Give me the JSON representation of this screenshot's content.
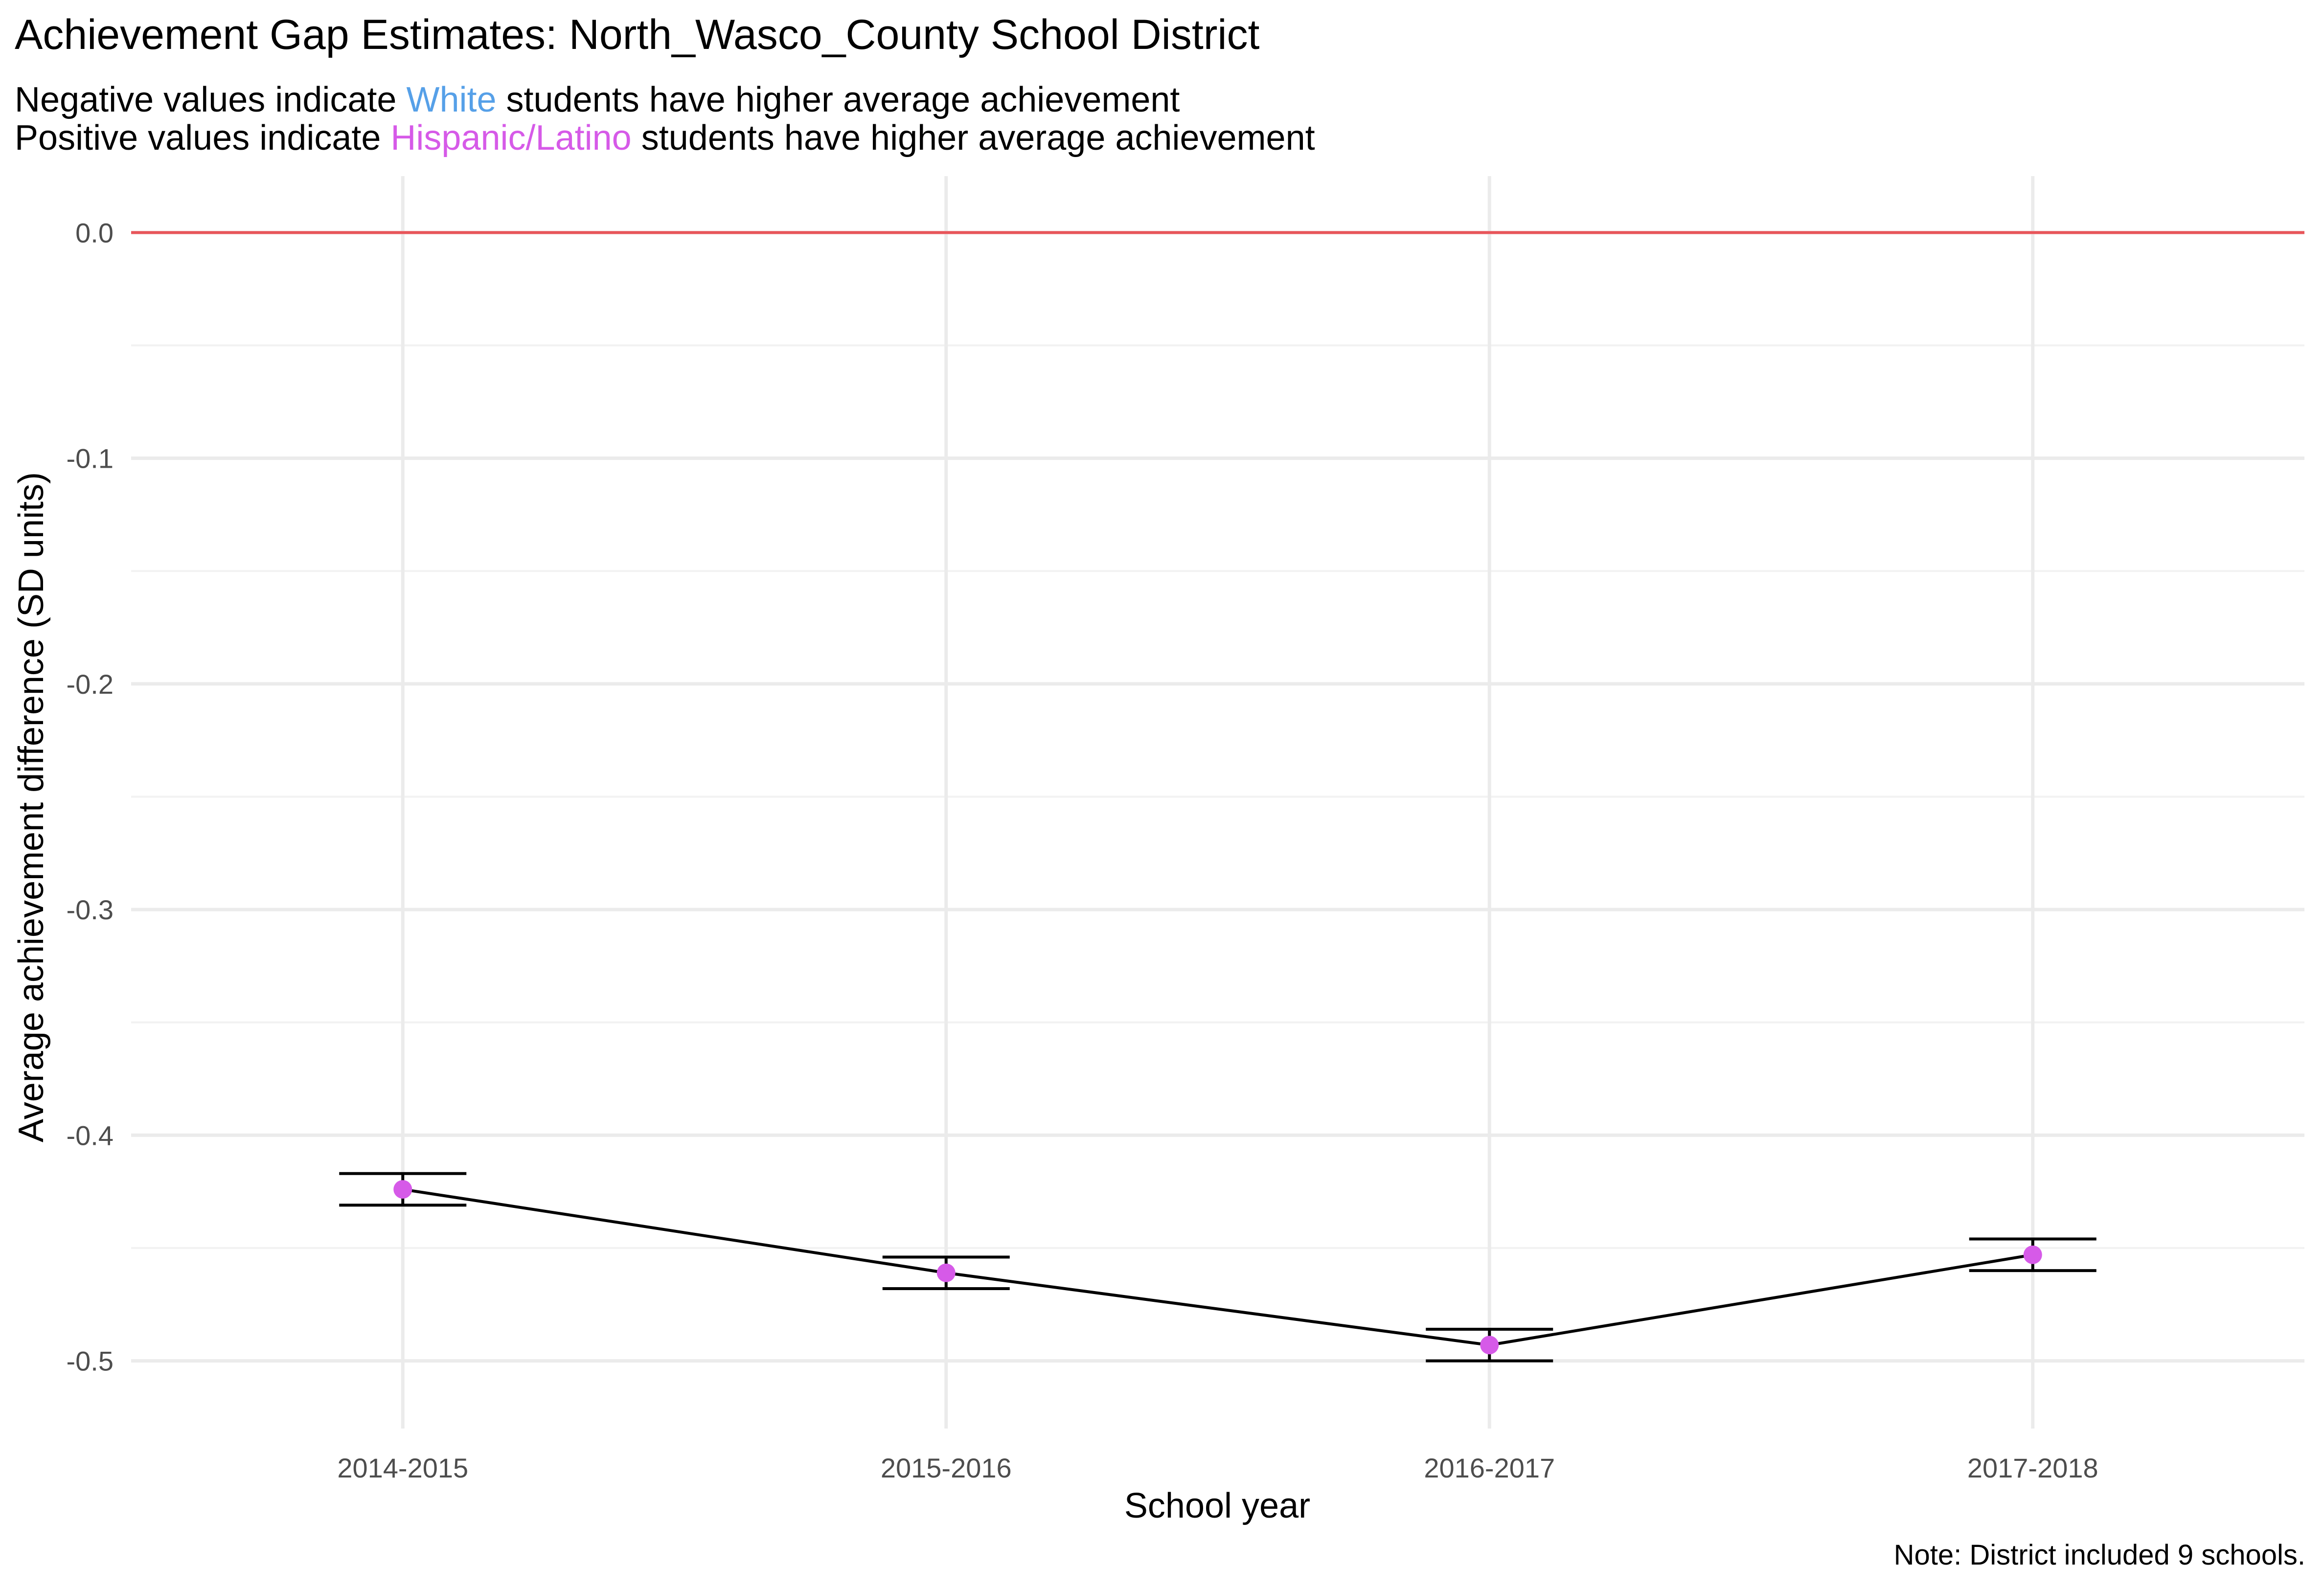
{
  "chart_data": {
    "type": "line",
    "title": "Achievement Gap Estimates: North_Wasco_County School District",
    "subtitle": [
      {
        "parts": [
          {
            "text": "Negative values indicate ",
            "color": "#000000"
          },
          {
            "text": "White",
            "color": "#56a0e8"
          },
          {
            "text": " students have higher average achievement",
            "color": "#000000"
          }
        ]
      },
      {
        "parts": [
          {
            "text": "Positive values indicate ",
            "color": "#000000"
          },
          {
            "text": "Hispanic/Latino",
            "color": "#d65ae8"
          },
          {
            "text": " students have higher average achievement",
            "color": "#000000"
          }
        ]
      }
    ],
    "xlabel": "School year",
    "ylabel": "Average achievement difference (SD units)",
    "caption": "Note: District included 9 schools.",
    "categories": [
      "2014-2015",
      "2015-2016",
      "2016-2017",
      "2017-2018"
    ],
    "series": [
      {
        "values": [
          -0.424,
          -0.461,
          -0.493,
          -0.453
        ],
        "lower": [
          -0.431,
          -0.468,
          -0.5,
          -0.46
        ],
        "upper": [
          -0.417,
          -0.454,
          -0.486,
          -0.446
        ]
      }
    ],
    "ylim": [
      -0.53,
      0.025
    ],
    "yticks": [
      0.0,
      -0.1,
      -0.2,
      -0.3,
      -0.4,
      -0.5
    ],
    "ytick_labels": [
      "0.0",
      "-0.1",
      "-0.2",
      "-0.3",
      "-0.4",
      "-0.5"
    ],
    "reference_line": {
      "y": 0.0,
      "color": "#e8555a"
    },
    "point_color": "#d65ae8",
    "line_color": "#000000",
    "grid": true
  }
}
